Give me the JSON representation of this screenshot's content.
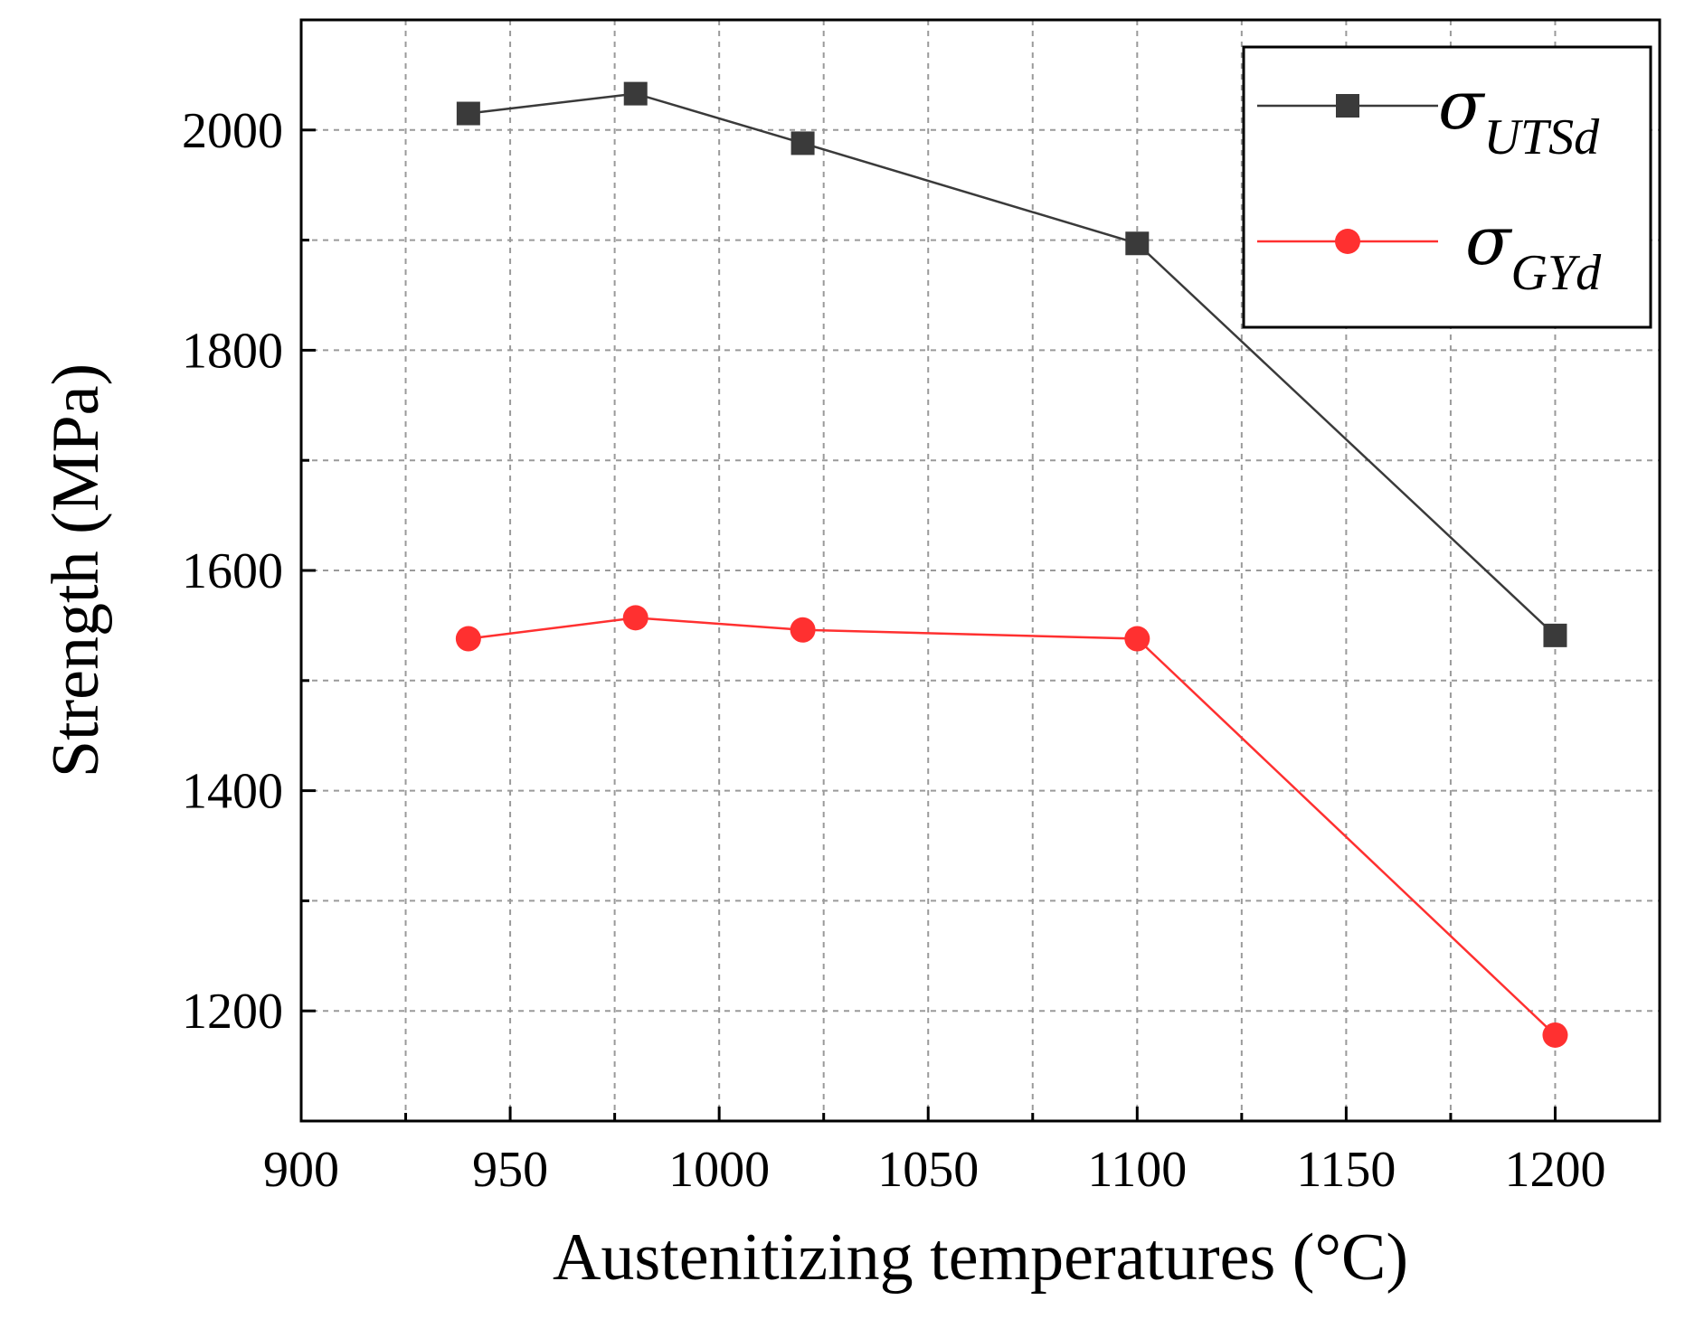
{
  "chart_data": {
    "type": "line",
    "title": "",
    "xlabel": "Austenitizing temperatures (°C)",
    "ylabel": "Strength (MPa)",
    "xlim": [
      900,
      1225
    ],
    "ylim": [
      1100,
      2100
    ],
    "x_ticks": [
      900,
      950,
      1000,
      1050,
      1100,
      1150,
      1200
    ],
    "x_tick_labels": [
      "900",
      "950",
      "1000",
      "1050",
      "1100",
      "1150",
      "1200"
    ],
    "y_ticks": [
      1200,
      1400,
      1600,
      1800,
      2000
    ],
    "y_tick_labels": [
      "1200",
      "1400",
      "1600",
      "1800",
      "2000"
    ],
    "y_minor_ticks": [
      1300,
      1500,
      1700,
      1900
    ],
    "x_minor_ticks": [
      925,
      975,
      1025,
      1075,
      1125,
      1175
    ],
    "grid": true,
    "legend_position": "top-right",
    "series": [
      {
        "name": "σUTSd",
        "symbol": "σ",
        "subscript": "UTSd",
        "marker": "square",
        "color": "#3a3a3a",
        "x": [
          940,
          980,
          1020,
          1100,
          1200
        ],
        "y": [
          2015,
          2033,
          1988,
          1897,
          1541
        ]
      },
      {
        "name": "σGYd",
        "symbol": "σ",
        "subscript": "GYd",
        "marker": "circle",
        "color": "#ff3030",
        "x": [
          940,
          980,
          1020,
          1100,
          1200
        ],
        "y": [
          1538,
          1557,
          1546,
          1538,
          1178
        ]
      }
    ]
  }
}
